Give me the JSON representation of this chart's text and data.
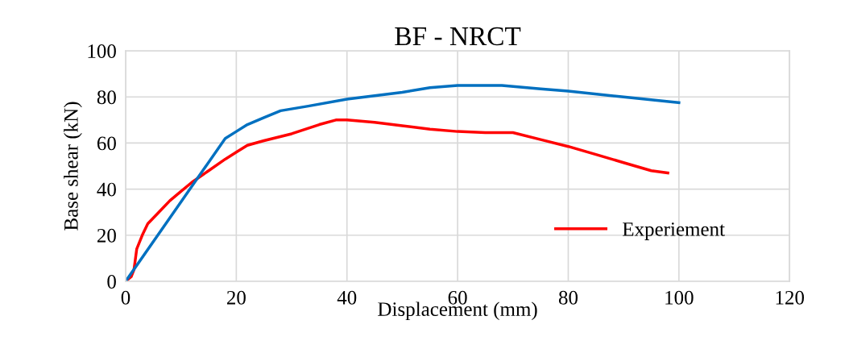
{
  "chart_data": {
    "type": "line",
    "title": "BF - NRCT",
    "xlabel": "Displacement (mm)",
    "ylabel": "Base shear (kN)",
    "xlim": [
      0,
      120
    ],
    "xticks": [
      0,
      20,
      40,
      60,
      80,
      100,
      120
    ],
    "ylim": [
      0,
      100
    ],
    "yticks": [
      0,
      20,
      40,
      60,
      80,
      100
    ],
    "grid": true,
    "legend": "bottom right",
    "marker": "none",
    "line_style": "solid",
    "series": [
      {
        "name": "Experiement",
        "color": "#ff0000",
        "x": [
          0,
          1,
          1.5,
          2,
          3,
          4,
          6,
          8,
          10,
          12,
          15,
          18,
          20,
          22,
          25,
          30,
          35,
          38,
          40,
          45,
          50,
          55,
          60,
          65,
          70,
          75,
          80,
          85,
          90,
          95,
          98
        ],
        "values": [
          0,
          2,
          5,
          14,
          20,
          25,
          30,
          35,
          39,
          43,
          48,
          53,
          56,
          59,
          61,
          64,
          68,
          70,
          70,
          69,
          67.5,
          66,
          65,
          64.5,
          64.5,
          61.5,
          58.5,
          55,
          51.5,
          48,
          47
        ]
      },
      {
        "color": "#0070c0",
        "x": [
          0,
          18,
          20,
          22,
          25,
          28,
          33,
          40,
          50,
          55,
          60,
          68,
          75,
          80,
          90,
          100
        ],
        "values": [
          0,
          62,
          65,
          68,
          71,
          74,
          76,
          79,
          82,
          84,
          85,
          85,
          83.5,
          82.5,
          80,
          77.5
        ]
      }
    ]
  }
}
